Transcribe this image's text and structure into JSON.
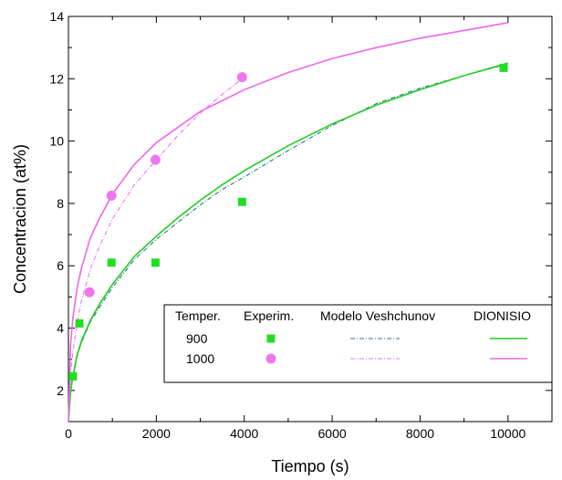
{
  "chart_data": {
    "type": "line",
    "xlabel": "Tiempo (s)",
    "ylabel": "Concentracion (at%)",
    "xlim": [
      0,
      11000
    ],
    "ylim": [
      1,
      14
    ],
    "x_ticks": [
      0,
      2000,
      4000,
      6000,
      8000,
      10000
    ],
    "x_tick_labels": [
      "0",
      "2000",
      "4000",
      "6000",
      "8000",
      "10000"
    ],
    "y_ticks": [
      2,
      4,
      6,
      8,
      10,
      12,
      14
    ],
    "y_tick_labels": [
      "2",
      "4",
      "6",
      "8",
      "10",
      "12",
      "14"
    ],
    "grid": false,
    "legend": {
      "placement": "bottom-right",
      "headers": [
        "Temper.",
        "Experim.",
        "Modelo Veshchunov",
        "DIONISIO"
      ],
      "rows": [
        "900",
        "1000"
      ]
    },
    "series": [
      {
        "name": "900 Experim.",
        "kind": "scatter",
        "marker": "square",
        "color": "#22dd22",
        "x": [
          100,
          250,
          980,
          1980,
          3950,
          9900
        ],
        "y": [
          2.45,
          4.15,
          6.1,
          6.1,
          8.05,
          12.35
        ]
      },
      {
        "name": "1000 Experim.",
        "kind": "scatter",
        "marker": "circle",
        "color": "#ee77ee",
        "x": [
          480,
          980,
          1980,
          3950
        ],
        "y": [
          5.15,
          8.25,
          9.4,
          12.05
        ]
      },
      {
        "name": "900 Modelo Veshchunov",
        "kind": "line",
        "dash": "dash-dot",
        "color": "#2a7a90",
        "x": [
          0,
          50,
          100,
          200,
          300,
          500,
          700,
          1000,
          1500,
          2000,
          2500,
          3000,
          3500,
          4000,
          5000,
          6000,
          7000,
          8000,
          9000,
          9800
        ],
        "y": [
          1.0,
          1.9,
          2.4,
          3.1,
          3.55,
          4.2,
          4.65,
          5.3,
          6.2,
          6.85,
          7.4,
          7.95,
          8.45,
          8.85,
          9.7,
          10.5,
          11.2,
          11.7,
          12.1,
          12.4
        ]
      },
      {
        "name": "900 DIONISIO",
        "kind": "line",
        "dash": "solid",
        "color": "#22cc22",
        "x": [
          0,
          50,
          100,
          200,
          300,
          500,
          700,
          1000,
          1500,
          2000,
          2500,
          3000,
          3500,
          4000,
          5000,
          6000,
          7000,
          8000,
          9000,
          10000
        ],
        "y": [
          1.0,
          2.0,
          2.45,
          3.15,
          3.6,
          4.25,
          4.75,
          5.4,
          6.3,
          6.95,
          7.55,
          8.1,
          8.6,
          9.05,
          9.85,
          10.55,
          11.15,
          11.65,
          12.1,
          12.5
        ]
      },
      {
        "name": "1000 Modelo Veshchunov",
        "kind": "line",
        "dash": "dash-dot",
        "color": "#ee77ee",
        "x": [
          0,
          50,
          100,
          200,
          300,
          500,
          700,
          1000,
          1500,
          2000,
          2500,
          3000,
          3500,
          4000
        ],
        "y": [
          1.0,
          2.5,
          3.2,
          4.2,
          4.9,
          5.9,
          6.6,
          7.5,
          8.6,
          9.4,
          10.2,
          10.9,
          11.5,
          12.05
        ]
      },
      {
        "name": "1000 DIONISIO",
        "kind": "line",
        "dash": "solid",
        "color": "#ee66ee",
        "x": [
          0,
          50,
          100,
          200,
          300,
          500,
          700,
          1000,
          1500,
          2000,
          3000,
          4000,
          5000,
          6000,
          7000,
          8000,
          9000,
          10000
        ],
        "y": [
          1.0,
          3.5,
          4.3,
          5.3,
          5.95,
          6.9,
          7.5,
          8.3,
          9.25,
          9.95,
          10.95,
          11.65,
          12.2,
          12.65,
          13.0,
          13.3,
          13.55,
          13.8
        ]
      }
    ]
  }
}
